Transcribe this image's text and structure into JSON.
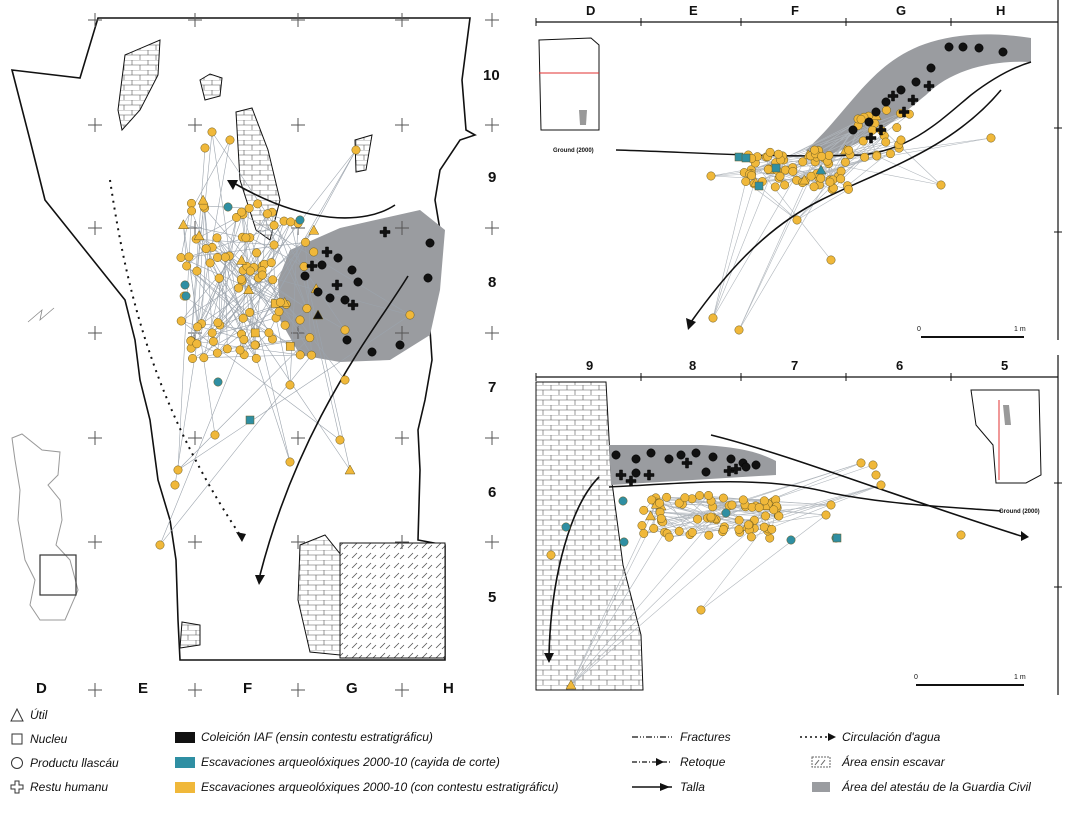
{
  "colors": {
    "iaf": "#111111",
    "cayida": "#2f8fa3",
    "contestu": "#f0b83a",
    "guardia": "#9a9ca0"
  },
  "plan": {
    "columns": [
      "D",
      "E",
      "F",
      "G",
      "H"
    ],
    "rows": [
      "10",
      "9",
      "8",
      "7",
      "6",
      "5"
    ]
  },
  "section_top": {
    "columns": [
      "D",
      "E",
      "F",
      "G",
      "H"
    ],
    "ground_label": "Ground (2000)",
    "scale_labels": [
      "0",
      "1 m"
    ]
  },
  "section_bottom": {
    "columns": [
      "9",
      "8",
      "7",
      "6",
      "5"
    ],
    "ground_label": "Ground (2000)",
    "scale_labels": [
      "0",
      "1 m"
    ]
  },
  "legend": {
    "shapes": [
      {
        "icon": "triangle-icon",
        "label": "Útil"
      },
      {
        "icon": "square-icon",
        "label": "Nucleu"
      },
      {
        "icon": "circle-icon",
        "label": "Productu llascáu"
      },
      {
        "icon": "cross-icon",
        "label": "Restu humanu"
      }
    ],
    "groups": [
      {
        "color": "#111111",
        "label": "Coleición IAF (ensin contestu estratigráficu)"
      },
      {
        "color": "#2f8fa3",
        "label": "Escavaciones arqueolóxiques 2000-10 (cayida de corte)"
      },
      {
        "color": "#f0b83a",
        "label": "Escavaciones arqueolóxiques 2000-10 (con contestu estratigráficu)"
      }
    ],
    "lines": [
      {
        "icon": "fracture-line-icon",
        "label": "Fractures"
      },
      {
        "icon": "retouch-line-icon",
        "label": "Retoque"
      },
      {
        "icon": "knapping-line-icon",
        "label": "Talla"
      }
    ],
    "areas": [
      {
        "icon": "water-flow-icon",
        "label": "Circulación d'agua"
      },
      {
        "icon": "unexcavated-area-icon",
        "label": "Área ensin escavar"
      },
      {
        "icon": "guardia-civil-area-icon",
        "label": "Área del atestáu de la Guardia Civil"
      }
    ]
  }
}
